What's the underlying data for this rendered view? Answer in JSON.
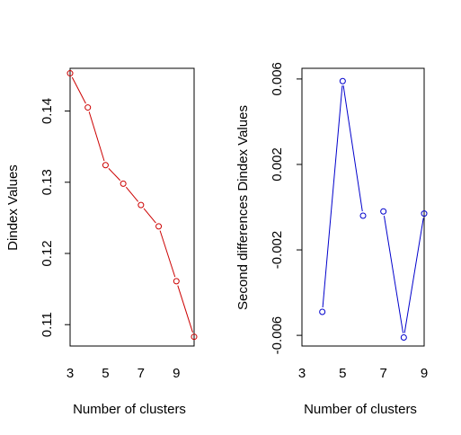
{
  "chart_data": [
    {
      "type": "line",
      "xlabel": "Number of clusters",
      "ylabel": "Dindex Values",
      "xlim": [
        3,
        10
      ],
      "ylim": [
        0.107,
        0.146
      ],
      "x_ticks": [
        "3",
        "5",
        "7",
        "9"
      ],
      "y_ticks": [
        "0.11",
        "0.12",
        "0.13",
        "0.14"
      ],
      "color": "#cc0000",
      "marker_color": "#cc0000",
      "points": [
        {
          "x": 3,
          "y": 0.1453
        },
        {
          "x": 4,
          "y": 0.1405
        },
        {
          "x": 5,
          "y": 0.1324
        },
        {
          "x": 6,
          "y": 0.1298
        },
        {
          "x": 7,
          "y": 0.1268
        },
        {
          "x": 8,
          "y": 0.1238
        },
        {
          "x": 9,
          "y": 0.1161
        },
        {
          "x": 10,
          "y": 0.1083
        }
      ]
    },
    {
      "type": "line",
      "xlabel": "Number of clusters",
      "ylabel": "Second differences Dindex Values",
      "xlim": [
        3,
        9
      ],
      "ylim": [
        -0.0065,
        0.0065
      ],
      "x_ticks": [
        "3",
        "5",
        "7",
        "9"
      ],
      "y_ticks": [
        "-0.006",
        "-0.002",
        "0.002",
        "0.006"
      ],
      "color": "#0000cc",
      "marker_color": "#0000cc",
      "points": [
        {
          "x": 4,
          "y": -0.0049
        },
        {
          "x": 5,
          "y": 0.0059
        },
        {
          "x": 6,
          "y": -0.0004
        },
        {
          "x": 7,
          "y": -0.0002
        },
        {
          "x": 8,
          "y": -0.0061
        },
        {
          "x": 9,
          "y": -0.0003
        }
      ]
    }
  ]
}
